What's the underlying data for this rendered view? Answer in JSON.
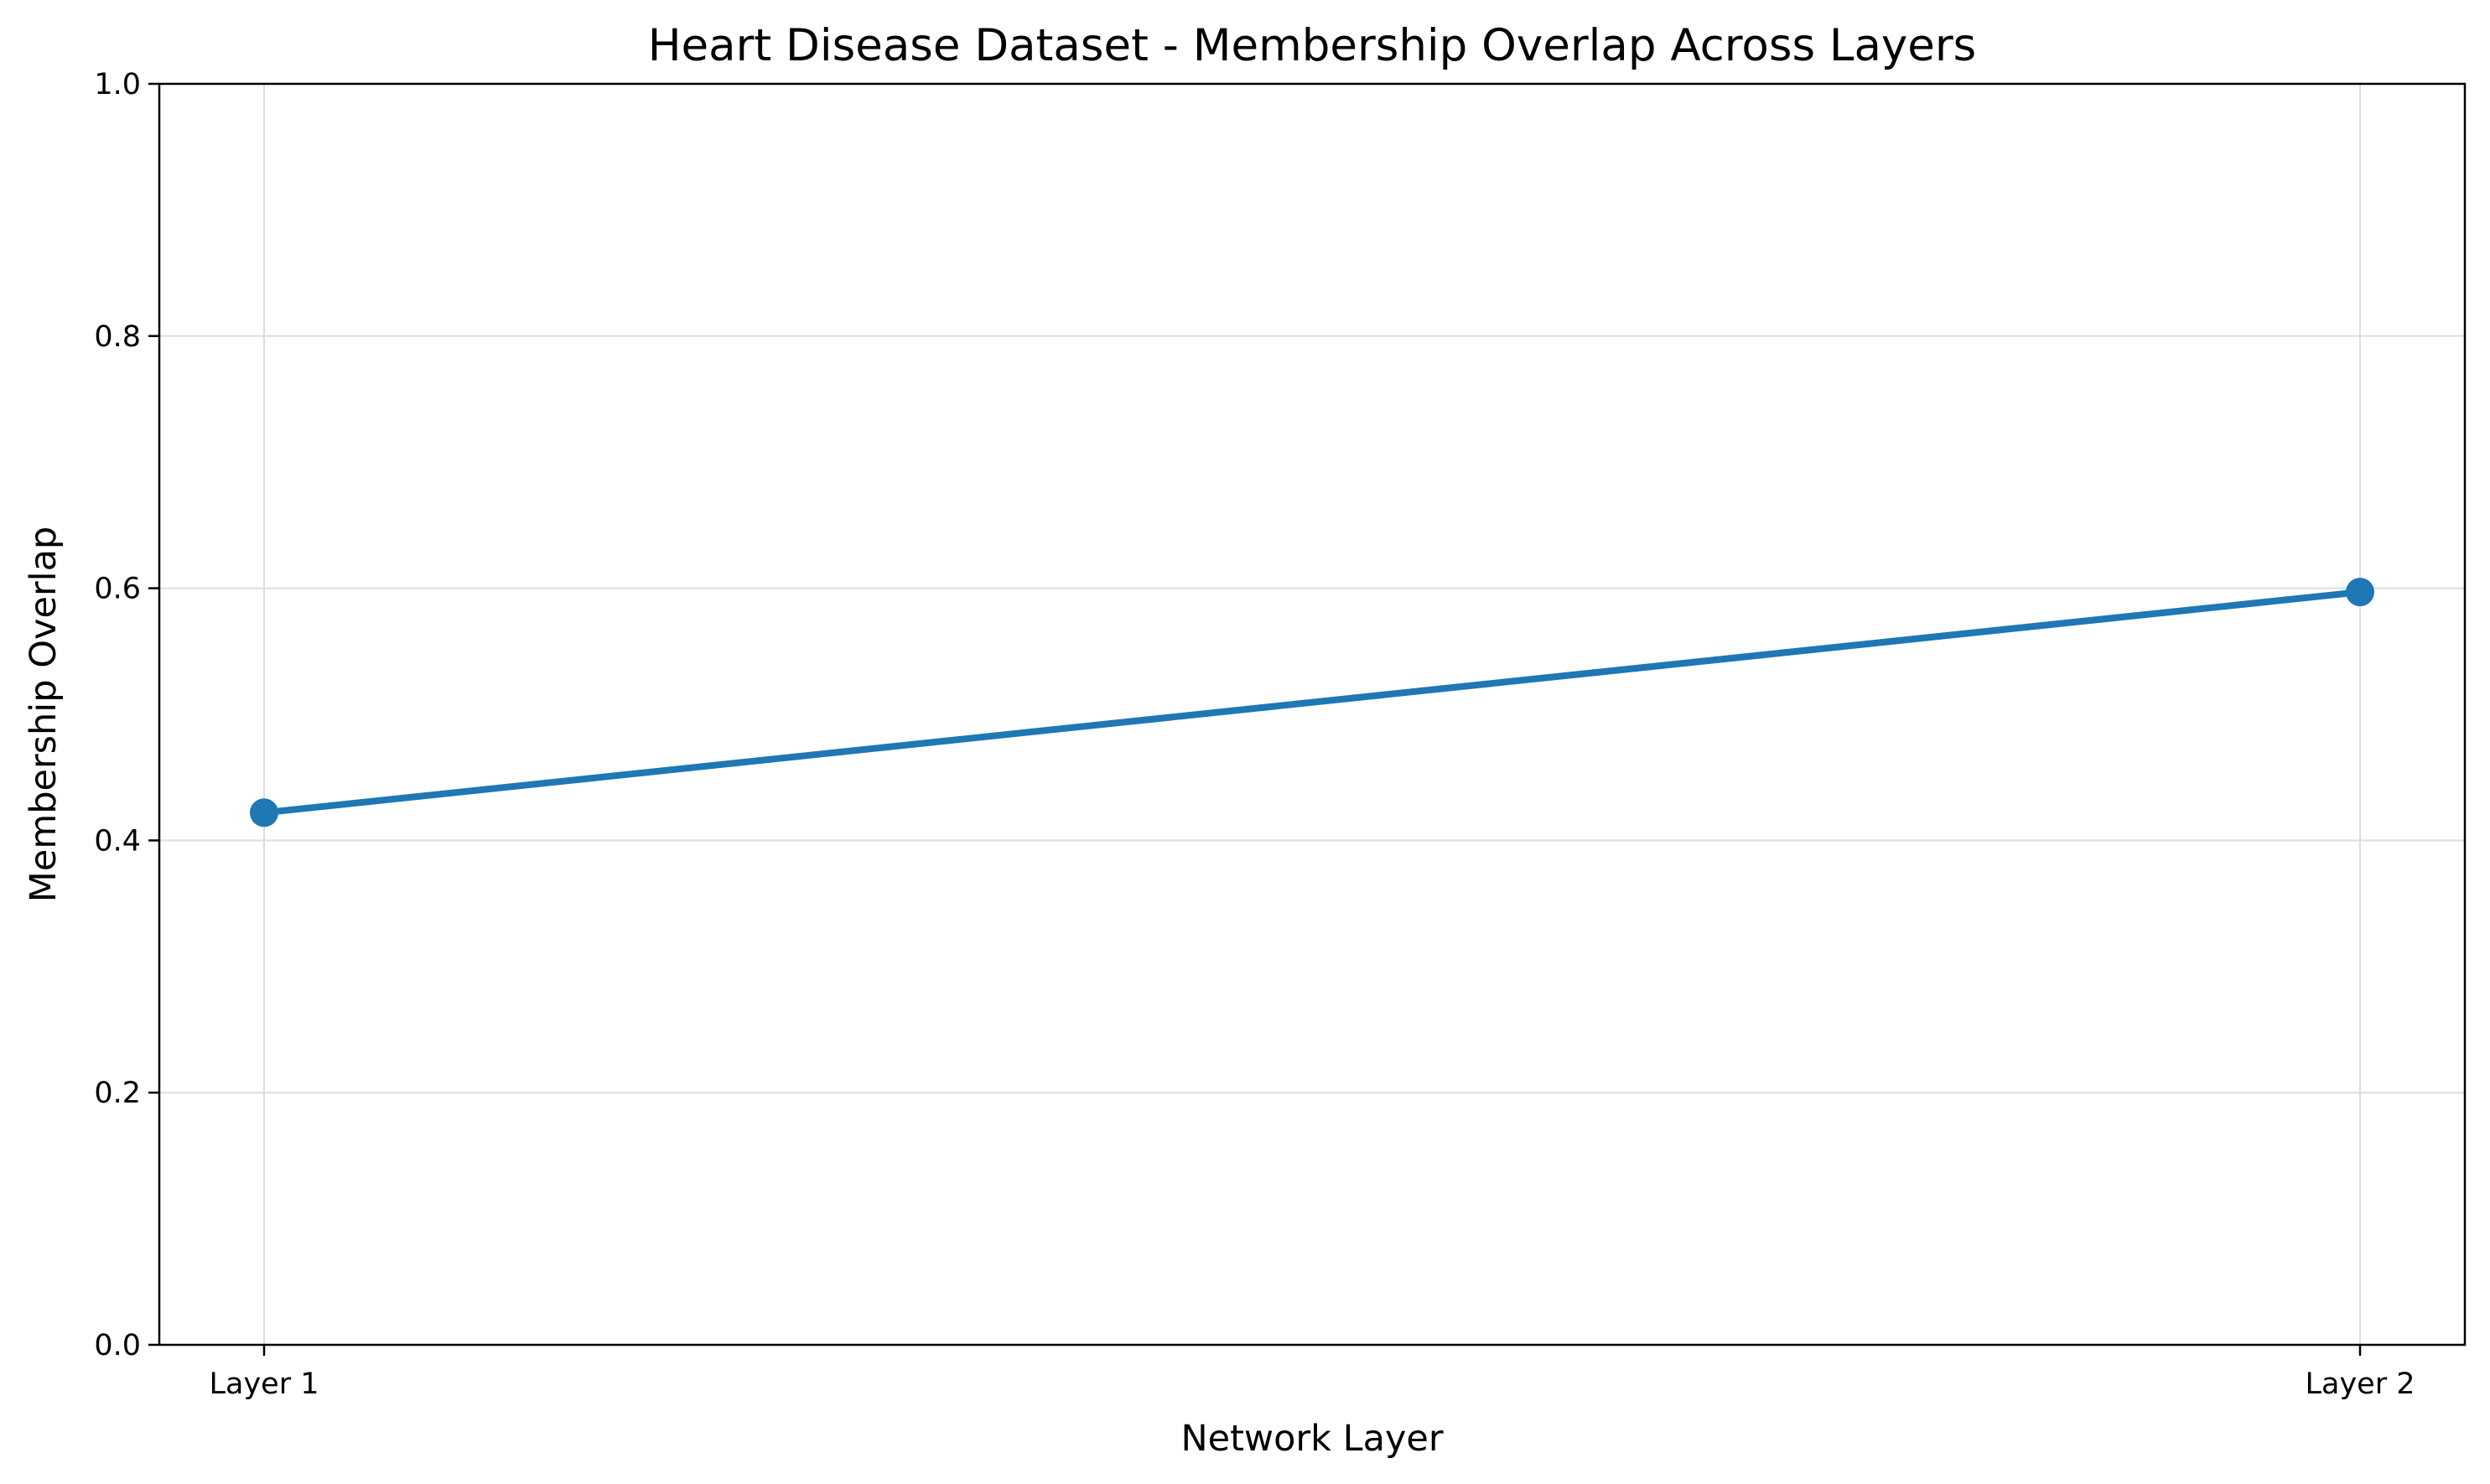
{
  "chart_data": {
    "type": "line",
    "title": "Heart Disease Dataset - Membership Overlap Across Layers",
    "xlabel": "Network Layer",
    "ylabel": "Membership Overlap",
    "categories": [
      "Layer 1",
      "Layer 2"
    ],
    "series": [
      {
        "values": [
          0.422,
          0.597
        ],
        "color": "#1f77b4",
        "marker": "circle"
      }
    ],
    "ylim": [
      0.0,
      1.0
    ],
    "yticks": [
      "0.0",
      "0.2",
      "0.4",
      "0.6",
      "0.8",
      "1.0"
    ],
    "grid": true
  }
}
